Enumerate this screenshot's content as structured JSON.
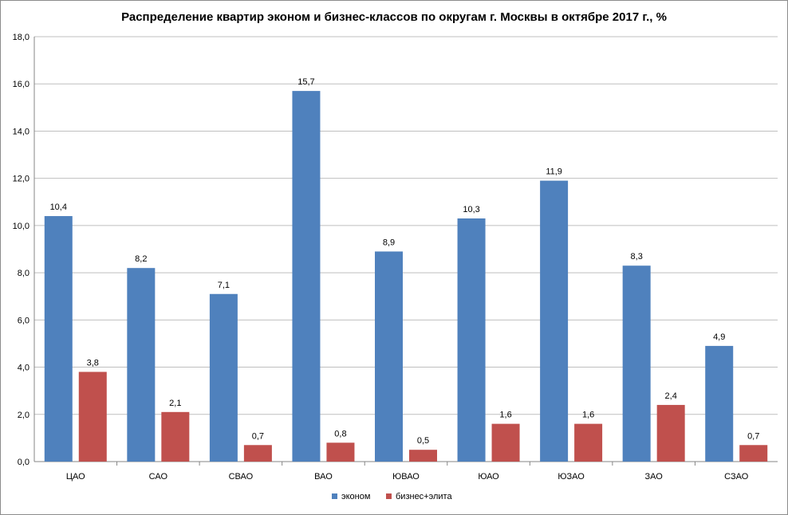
{
  "chart_data": {
    "type": "bar",
    "title": "Распределение квартир эконом и бизнес-классов по округам г. Москвы в октябре 2017 г., %",
    "categories": [
      "ЦАО",
      "САО",
      "СВАО",
      "ВАО",
      "ЮВАО",
      "ЮАО",
      "ЮЗАО",
      "ЗАО",
      "СЗАО"
    ],
    "series": [
      {
        "name": "эконом",
        "color": "#4f81bd",
        "values": [
          10.4,
          8.2,
          7.1,
          15.7,
          8.9,
          10.3,
          11.9,
          8.3,
          4.9
        ],
        "labels": [
          "10,4",
          "8,2",
          "7,1",
          "15,7",
          "8,9",
          "10,3",
          "11,9",
          "8,3",
          "4,9"
        ]
      },
      {
        "name": "бизнес+элита",
        "color": "#c0504d",
        "values": [
          3.8,
          2.1,
          0.7,
          0.8,
          0.5,
          1.6,
          1.6,
          2.4,
          0.7
        ],
        "labels": [
          "3,8",
          "2,1",
          "0,7",
          "0,8",
          "0,5",
          "1,6",
          "1,6",
          "2,4",
          "0,7"
        ]
      }
    ],
    "ylim": [
      0,
      18
    ],
    "yticks": [
      0,
      2,
      4,
      6,
      8,
      10,
      12,
      14,
      16,
      18
    ],
    "ytick_labels": [
      "0,0",
      "2,0",
      "4,0",
      "6,0",
      "8,0",
      "10,0",
      "12,0",
      "14,0",
      "16,0",
      "18,0"
    ],
    "grid": true,
    "legend": "bottom",
    "xlabel": "",
    "ylabel": ""
  }
}
